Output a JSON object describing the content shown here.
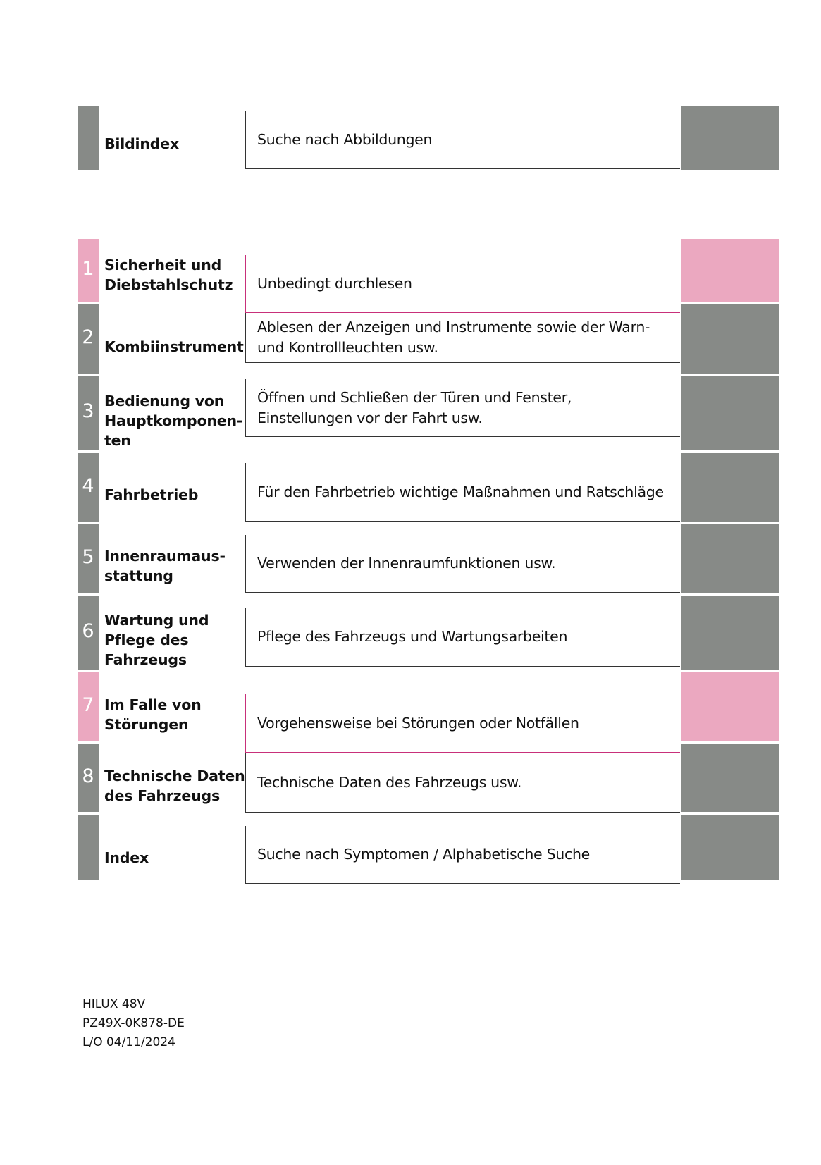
{
  "colors": {
    "gray": "#878a87",
    "pink": "#eba8c0",
    "line": "#333333",
    "accent_line": "#c8307a"
  },
  "sections": [
    {
      "num": "",
      "title": "Bildindex",
      "desc": "Suche nach Abbildungen",
      "color": "gray"
    },
    {
      "num": "1",
      "title": "Sicherheit und Diebstahlschutz",
      "desc": "Unbedingt durchlesen",
      "color": "pink"
    },
    {
      "num": "2",
      "title": "Kombiinstrument",
      "desc": "Ablesen der Anzeigen und Instrumente sowie der Warn- und Kontrollleuchten usw.",
      "color": "gray"
    },
    {
      "num": "3",
      "title": "Bedienung von Hauptkomponen­ten",
      "desc": "Öffnen und Schließen der Türen und Fenster, Einstellungen vor der Fahrt usw.",
      "color": "gray"
    },
    {
      "num": "4",
      "title": "Fahrbetrieb",
      "desc": "Für den Fahrbetrieb wichtige Maßnahmen und Ratschläge",
      "color": "gray"
    },
    {
      "num": "5",
      "title": "Innenraumaus­stattung",
      "desc": "Verwenden der Innenraumfunktionen usw.",
      "color": "gray"
    },
    {
      "num": "6",
      "title": "Wartung und Pflege des Fahrzeugs",
      "desc": "Pflege des Fahrzeugs und Wartungsarbeiten",
      "color": "gray"
    },
    {
      "num": "7",
      "title": "Im Falle von Störungen",
      "desc": "Vorgehensweise bei Störungen oder Notfällen",
      "color": "pink"
    },
    {
      "num": "8",
      "title": "Technische Daten des Fahrzeugs",
      "desc": "Technische Daten des Fahrzeugs usw.",
      "color": "gray"
    },
    {
      "num": "",
      "title": "Index",
      "desc": "Suche nach Symptomen / Alphabetische Suche",
      "color": "gray"
    }
  ],
  "footer": {
    "model": "HILUX 48V",
    "code": "PZ49X-0K878-DE",
    "date": "L/O 04/11/2024"
  }
}
